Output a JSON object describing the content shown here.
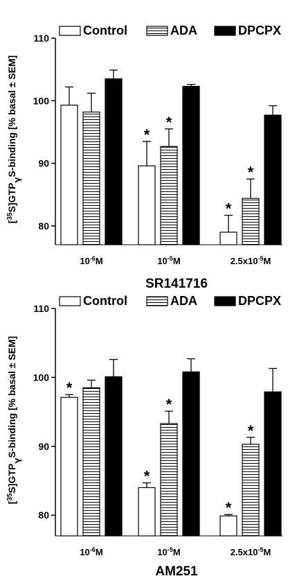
{
  "chart_data": [
    {
      "type": "bar",
      "title": "SR141716",
      "ylabel": "[35S]GTPγS-binding [% basal ± SEM]",
      "ylabel_parts": {
        "pre": "[",
        "sup": "35",
        "mid": "S]GTP",
        "gamma": "γ",
        "post": "S-binding [% basal ± SEM]"
      },
      "ylim": [
        77,
        110
      ],
      "yticks": [
        "80",
        "90",
        "100",
        "110"
      ],
      "categories": [
        {
          "base": "10",
          "exp": "-6",
          "suffix": "M"
        },
        {
          "base": "10",
          "exp": "-5",
          "suffix": "M"
        },
        {
          "base": "2.5x10",
          "exp": "-5",
          "suffix": "M"
        }
      ],
      "series": [
        {
          "name": "Control",
          "fill": "white",
          "values": [
            99.3,
            89.6,
            79.0
          ],
          "errors": [
            2.9,
            3.9,
            2.7
          ],
          "significant": [
            false,
            true,
            true
          ]
        },
        {
          "name": "ADA",
          "fill": "hlines",
          "values": [
            98.2,
            92.7,
            84.4
          ],
          "errors": [
            3.0,
            2.8,
            3.1
          ],
          "significant": [
            false,
            true,
            true
          ]
        },
        {
          "name": "DPCPX",
          "fill": "black",
          "values": [
            103.5,
            102.3,
            97.7
          ],
          "errors": [
            1.4,
            0.3,
            1.5
          ],
          "significant": [
            false,
            false,
            false
          ]
        }
      ],
      "legend_position": "top",
      "significance_marker": "*"
    },
    {
      "type": "bar",
      "title": "AM251",
      "ylabel": "[35S]GTPγS-binding [% basal ± SEM]",
      "ylabel_parts": {
        "pre": "[",
        "sup": "35",
        "mid": "S]GTP",
        "gamma": "γ",
        "post": "S-binding [% basal ± SEM]"
      },
      "ylim": [
        77,
        110
      ],
      "yticks": [
        "80",
        "90",
        "100",
        "110"
      ],
      "categories": [
        {
          "base": "10",
          "exp": "-6",
          "suffix": "M"
        },
        {
          "base": "10",
          "exp": "-5",
          "suffix": "M"
        },
        {
          "base": "2.5x10",
          "exp": "-5",
          "suffix": "M"
        }
      ],
      "series": [
        {
          "name": "Control",
          "fill": "white",
          "values": [
            97.1,
            84.0,
            79.9
          ],
          "errors": [
            0.4,
            0.7,
            0.2
          ],
          "significant": [
            true,
            true,
            true
          ]
        },
        {
          "name": "ADA",
          "fill": "hlines",
          "values": [
            98.5,
            93.3,
            90.3
          ],
          "errors": [
            1.1,
            1.8,
            1.0
          ],
          "significant": [
            false,
            true,
            true
          ]
        },
        {
          "name": "DPCPX",
          "fill": "black",
          "values": [
            100.1,
            100.8,
            97.9
          ],
          "errors": [
            2.5,
            1.9,
            3.4
          ],
          "significant": [
            false,
            false,
            false
          ]
        }
      ],
      "legend_position": "top",
      "significance_marker": "*"
    }
  ]
}
